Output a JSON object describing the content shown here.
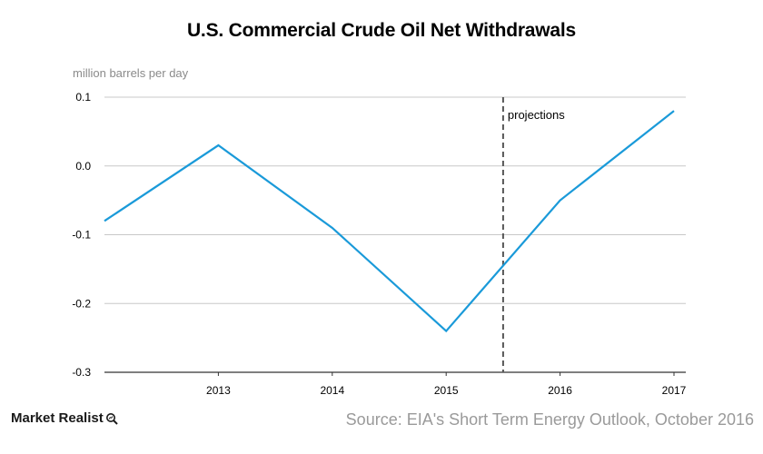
{
  "title": "U.S. Commercial Crude Oil Net Withdrawals",
  "unit_label": "million barrels per day",
  "brand": {
    "name": "Market Realist",
    "icon": "magnifier-icon"
  },
  "source": "Source: EIA's Short Term Energy Outlook, October 2016",
  "colors": {
    "line": "#1a9ad9",
    "grid": "#c8c8c8",
    "divider": "#555555"
  },
  "chart_data": {
    "type": "line",
    "title": "U.S. Commercial Crude Oil Net Withdrawals",
    "xlabel": "",
    "ylabel": "million barrels per day",
    "x_ticks": [
      "2013",
      "2014",
      "2015",
      "2016",
      "2017"
    ],
    "y_ticks": [
      "0.1",
      "0.0",
      "-0.1",
      "-0.2",
      "-0.3"
    ],
    "ylim": [
      -0.3,
      0.1
    ],
    "xlim": [
      2012,
      2017
    ],
    "grid": "horizontal",
    "series": [
      {
        "x": [
          2012,
          2013,
          2014,
          2015,
          2016,
          2017
        ],
        "values": [
          -0.08,
          0.03,
          -0.09,
          -0.24,
          -0.05,
          0.08
        ]
      }
    ],
    "annotations": [
      {
        "type": "vertical-dashed-line",
        "x": 2015.5,
        "label": "projections"
      }
    ]
  }
}
